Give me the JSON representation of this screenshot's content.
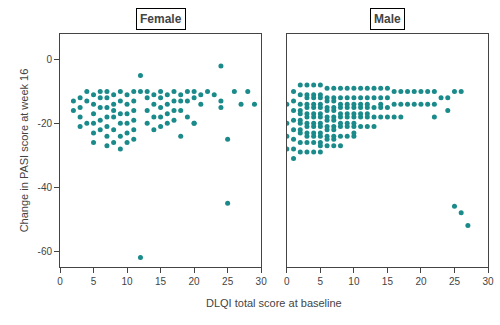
{
  "chart_data": [
    {
      "type": "scatter",
      "title": "Female",
      "xlabel": "DLQI total score at baseline",
      "ylabel": "Change in PASI score at week 16",
      "color": "#1a8a8a",
      "grid": false,
      "x": [
        2,
        2,
        3,
        3,
        3,
        3,
        4,
        4,
        4,
        5,
        5,
        5,
        5,
        5,
        5,
        6,
        6,
        6,
        6,
        6,
        7,
        7,
        7,
        7,
        7,
        7,
        7,
        8,
        8,
        8,
        8,
        8,
        8,
        9,
        9,
        9,
        9,
        9,
        9,
        10,
        10,
        10,
        10,
        10,
        10,
        11,
        11,
        11,
        11,
        11,
        11,
        12,
        12,
        13,
        13,
        13,
        13,
        14,
        14,
        14,
        14,
        15,
        15,
        15,
        15,
        15,
        16,
        16,
        16,
        16,
        17,
        17,
        17,
        17,
        18,
        18,
        18,
        18,
        19,
        19,
        19,
        20,
        20,
        20,
        21,
        21,
        22,
        23,
        24,
        24,
        25,
        25,
        26,
        27,
        28,
        29,
        12,
        20,
        24
      ],
      "values": [
        -13,
        -16,
        -12,
        -15,
        -18,
        -21,
        -10,
        -13,
        -20,
        -11,
        -14,
        -17,
        -20,
        -23,
        -26,
        -10,
        -12,
        -15,
        -19,
        -22,
        -10,
        -12,
        -15,
        -18,
        -21,
        -24,
        -27,
        -11,
        -14,
        -18,
        -22,
        -26,
        -16,
        -10,
        -13,
        -17,
        -20,
        -24,
        -28,
        -11,
        -14,
        -17,
        -20,
        -23,
        -26,
        -10,
        -13,
        -16,
        -19,
        -22,
        -25,
        -5,
        -10,
        -10,
        -12,
        -16,
        -20,
        -11,
        -14,
        -18,
        -22,
        -10,
        -12,
        -15,
        -18,
        -21,
        -11,
        -14,
        -17,
        -20,
        -10,
        -13,
        -16,
        -19,
        -11,
        -13,
        -16,
        -24,
        -10,
        -13,
        -18,
        -10,
        -12,
        -20,
        -11,
        -14,
        -10,
        -11,
        -13,
        -15,
        -25,
        -45,
        -10,
        -14,
        -10,
        -14,
        -62,
        -20,
        -2
      ],
      "xlim": [
        0,
        30
      ],
      "xticks": [
        0,
        5,
        10,
        15,
        20,
        25,
        30
      ],
      "ylim": [
        -65,
        8
      ],
      "yticks": [
        0,
        -20,
        -40,
        -60
      ]
    },
    {
      "type": "scatter",
      "title": "Male",
      "color": "#1a8a8a",
      "grid": false,
      "tick_labels": "x",
      "x": [
        0,
        0,
        0,
        0,
        1,
        1,
        1,
        1,
        1,
        1,
        1,
        1,
        2,
        2,
        2,
        2,
        2,
        2,
        2,
        2,
        2,
        2,
        2,
        3,
        3,
        3,
        3,
        3,
        3,
        3,
        3,
        3,
        3,
        3,
        3,
        3,
        4,
        4,
        4,
        4,
        4,
        4,
        4,
        4,
        4,
        4,
        4,
        4,
        4,
        5,
        5,
        5,
        5,
        5,
        5,
        5,
        5,
        5,
        5,
        5,
        5,
        5,
        5,
        6,
        6,
        6,
        6,
        6,
        6,
        6,
        6,
        6,
        6,
        6,
        6,
        7,
        7,
        7,
        7,
        7,
        7,
        7,
        7,
        7,
        7,
        7,
        7,
        8,
        8,
        8,
        8,
        8,
        8,
        8,
        8,
        8,
        8,
        9,
        9,
        9,
        9,
        9,
        9,
        9,
        9,
        9,
        10,
        10,
        10,
        10,
        10,
        10,
        10,
        10,
        10,
        10,
        11,
        11,
        11,
        11,
        11,
        11,
        11,
        12,
        12,
        12,
        12,
        12,
        12,
        12,
        13,
        13,
        13,
        13,
        13,
        14,
        14,
        14,
        14,
        14,
        15,
        15,
        15,
        15,
        16,
        16,
        16,
        17,
        17,
        17,
        18,
        18,
        19,
        19,
        20,
        20,
        21,
        21,
        22,
        22,
        22,
        23,
        24,
        24,
        25,
        25,
        26,
        26,
        27
      ],
      "values": [
        -14,
        -20,
        -24,
        -28,
        -10,
        -13,
        -16,
        -19,
        -22,
        -25,
        -28,
        -31,
        -8,
        -11,
        -14,
        -17,
        -20,
        -23,
        -26,
        -29,
        -16,
        -19,
        -22,
        -8,
        -11,
        -14,
        -17,
        -20,
        -23,
        -26,
        -29,
        -12,
        -15,
        -18,
        -21,
        -24,
        -8,
        -11,
        -14,
        -17,
        -20,
        -23,
        -26,
        -29,
        -12,
        -15,
        -18,
        -21,
        -24,
        -8,
        -11,
        -14,
        -17,
        -20,
        -23,
        -26,
        -29,
        -12,
        -15,
        -18,
        -21,
        -24,
        -27,
        -9,
        -12,
        -15,
        -18,
        -21,
        -24,
        -27,
        -13,
        -16,
        -19,
        -22,
        -25,
        -9,
        -12,
        -15,
        -18,
        -21,
        -24,
        -27,
        -13,
        -16,
        -19,
        -22,
        -25,
        -9,
        -12,
        -15,
        -18,
        -21,
        -24,
        -27,
        -14,
        -17,
        -20,
        -9,
        -12,
        -15,
        -18,
        -21,
        -24,
        -14,
        -17,
        -20,
        -9,
        -12,
        -15,
        -18,
        -21,
        -24,
        -14,
        -17,
        -20,
        -23,
        -9,
        -12,
        -15,
        -18,
        -21,
        -14,
        -17,
        -9,
        -12,
        -15,
        -18,
        -21,
        -14,
        -17,
        -9,
        -12,
        -15,
        -18,
        -21,
        -9,
        -12,
        -15,
        -18,
        -14,
        -9,
        -12,
        -15,
        -18,
        -10,
        -14,
        -18,
        -10,
        -14,
        -18,
        -10,
        -14,
        -10,
        -14,
        -10,
        -14,
        -10,
        -14,
        -10,
        -14,
        -18,
        -12,
        -12,
        -16,
        -10,
        -46,
        -10,
        -48,
        -52
      ],
      "xlim": [
        0,
        30
      ],
      "xticks": [
        0,
        5,
        10,
        15,
        20,
        25,
        30
      ],
      "ylim": [
        -65,
        8
      ],
      "yticks": [
        0,
        -20,
        -40,
        -60
      ]
    }
  ]
}
